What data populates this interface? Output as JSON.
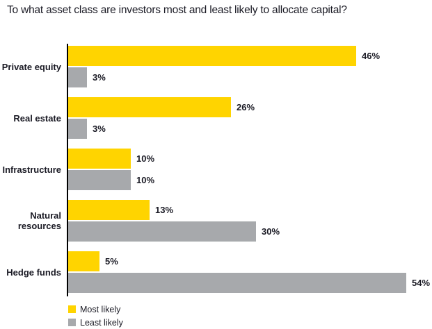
{
  "chart_data": {
    "type": "bar",
    "orientation": "horizontal",
    "title": "To what asset class are investors most and least likely to allocate capital?",
    "categories": [
      "Private equity",
      "Real estate",
      "Infrastructure",
      "Natural resources",
      "Hedge funds"
    ],
    "series": [
      {
        "name": "Most likely",
        "color": "#FFD400",
        "values": [
          46,
          26,
          10,
          13,
          5
        ],
        "labels": [
          "46%",
          "26%",
          "10%",
          "13%",
          "5%"
        ]
      },
      {
        "name": "Least likely",
        "color": "#A7A9AC",
        "values": [
          3,
          3,
          10,
          30,
          54
        ],
        "labels": [
          "3%",
          "3%",
          "10%",
          "30%",
          "54%"
        ]
      }
    ],
    "value_unit": "%",
    "xlim": [
      0,
      58
    ],
    "grid": false,
    "legend_position": "bottom-left"
  },
  "colors": {
    "most_likely": "#FFD400",
    "least_likely": "#A7A9AC",
    "text": "#1a1a24",
    "axis": "#000000",
    "background": "#ffffff"
  }
}
